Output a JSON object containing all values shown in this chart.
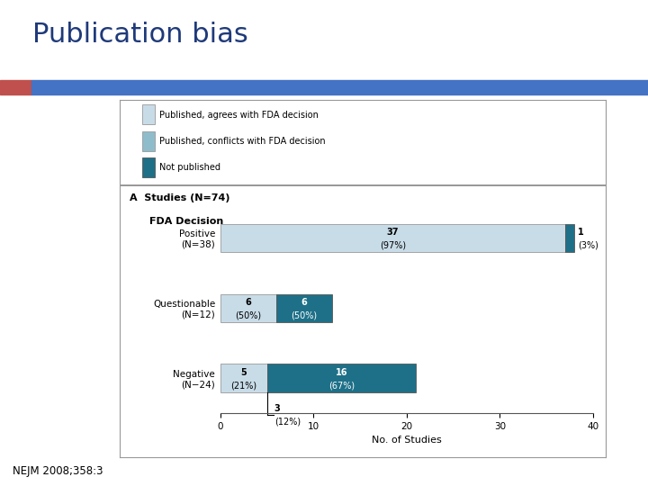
{
  "title": "Publication bias",
  "title_color": "#1F3A7A",
  "subtitle": "NEJM 2008;358:3",
  "stripe_blue": "#4472C4",
  "stripe_red": "#C0504D",
  "background": "#FFFFFF",
  "legend_items": [
    {
      "label": "Published, agrees with FDA decision",
      "color": "#C8DCE8",
      "ec": "#999999"
    },
    {
      "label": "Published, conflicts with FDA decision",
      "color": "#8FBCCA",
      "ec": "#999999"
    },
    {
      "label": "Not published",
      "color": "#1E7088",
      "ec": "#555555"
    }
  ],
  "categories": [
    {
      "ylabel": "Positive\n(N=38)",
      "segments": [
        {
          "value": 37,
          "color": "#C8DCE8",
          "ec": "#999999",
          "label_in": "37\n(97%)",
          "text_color": "black"
        },
        {
          "value": 1,
          "color": "#1E7088",
          "ec": "#555555",
          "label_in": null
        }
      ],
      "outside_right": {
        "x": 38,
        "text": "1\n(3%)"
      }
    },
    {
      "ylabel": "Questionable\n(N=12)",
      "segments": [
        {
          "value": 6,
          "color": "#C8DCE8",
          "ec": "#999999",
          "label_in": "6\n(50%)",
          "text_color": "black"
        },
        {
          "value": 6,
          "color": "#1E7088",
          "ec": "#555555",
          "label_in": "6\n(50%)",
          "text_color": "white"
        }
      ],
      "outside_right": null
    },
    {
      "ylabel": "Negative\n(N−24)",
      "segments": [
        {
          "value": 5,
          "color": "#C8DCE8",
          "ec": "#999999",
          "label_in": "5\n(21%)",
          "text_color": "black"
        },
        {
          "value": 16,
          "color": "#1E7088",
          "ec": "#555555",
          "label_in": "16\n(67%)",
          "text_color": "white"
        }
      ],
      "outside_right": null,
      "below_annotation": {
        "x": 5,
        "text": "3\n(12%)"
      }
    }
  ],
  "panel_label": "A  Studies (N=74)",
  "fda_label": "FDA Decision",
  "xlabel": "No. of Studies",
  "xlim": [
    0,
    40
  ],
  "xticks": [
    0,
    10,
    20,
    30,
    40
  ]
}
